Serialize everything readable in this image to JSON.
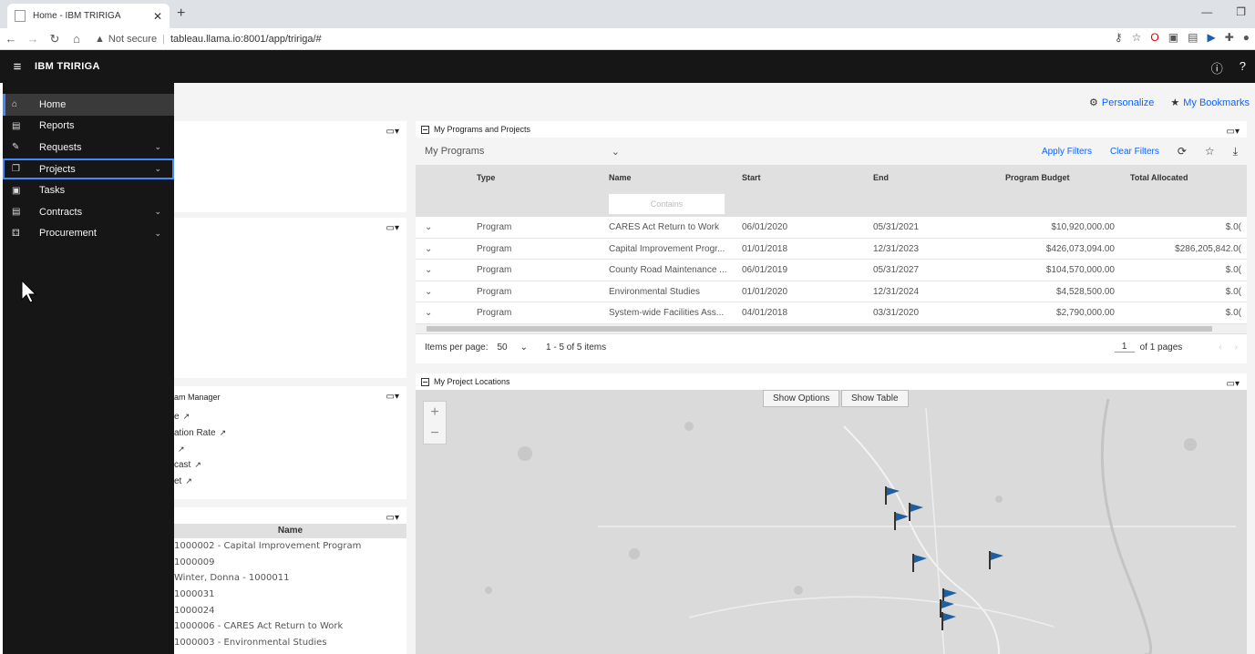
{
  "browser": {
    "tab_title": "Home - IBM TRIRIGA",
    "security_label": "Not secure",
    "url": "tableau.llama.io:8001/app/tririga/#"
  },
  "app": {
    "brand": "IBM TRIRIGA",
    "accent_color": "#4589ff"
  },
  "sidebar": {
    "items": [
      {
        "label": "Home",
        "icon": "home-icon"
      },
      {
        "label": "Reports",
        "icon": "reports-icon"
      },
      {
        "label": "Requests",
        "icon": "requests-icon"
      },
      {
        "label": "Projects",
        "icon": "projects-icon"
      },
      {
        "label": "Tasks",
        "icon": "tasks-icon"
      },
      {
        "label": "Contracts",
        "icon": "contracts-icon"
      },
      {
        "label": "Procurement",
        "icon": "procurement-icon"
      }
    ]
  },
  "toolbar": {
    "personalize": "Personalize",
    "bookmarks": "My Bookmarks"
  },
  "left_cards": {
    "manager_title": "am Manager",
    "links": [
      "e",
      "ation Rate",
      "",
      "cast",
      "et"
    ],
    "projects_header": "Name",
    "projects": [
      "1000002 - Capital Improvement Program",
      "1000009",
      "Winter, Donna - 1000011",
      "1000031",
      "1000024",
      "1000006 - CARES Act Return to Work",
      "1000003 - Environmental Studies"
    ]
  },
  "programs": {
    "title": "My Programs and Projects",
    "selected_filter": "My Programs",
    "apply_filters": "Apply Filters",
    "clear_filters": "Clear Filters",
    "columns": [
      "Type",
      "Name",
      "Start",
      "End",
      "Program Budget",
      "Total Allocated"
    ],
    "contains_placeholder": "Contains",
    "rows": [
      {
        "type": "Program",
        "name": "CARES Act Return to Work",
        "start": "06/01/2020",
        "end": "05/31/2021",
        "budget": "$10,920,000.00",
        "allocated": "$.0("
      },
      {
        "type": "Program",
        "name": "Capital Improvement Progr...",
        "start": "01/01/2018",
        "end": "12/31/2023",
        "budget": "$426,073,094.00",
        "allocated": "$286,205,842.0("
      },
      {
        "type": "Program",
        "name": "County Road Maintenance ...",
        "start": "06/01/2019",
        "end": "05/31/2027",
        "budget": "$104,570,000.00",
        "allocated": "$.0("
      },
      {
        "type": "Program",
        "name": "Environmental Studies",
        "start": "01/01/2020",
        "end": "12/31/2024",
        "budget": "$4,528,500.00",
        "allocated": "$.0("
      },
      {
        "type": "Program",
        "name": "System-wide Facilities Ass...",
        "start": "04/01/2018",
        "end": "03/31/2020",
        "budget": "$2,790,000.00",
        "allocated": "$.0("
      }
    ],
    "items_per_page_label": "Items per page:",
    "items_per_page": "50",
    "range_label": "1 - 5 of 5 items",
    "page": "1",
    "of_pages": "of 1 pages"
  },
  "map": {
    "title": "My Project Locations",
    "show_options": "Show Options",
    "show_table": "Show Table",
    "flag_color": "#1f5fa0"
  }
}
